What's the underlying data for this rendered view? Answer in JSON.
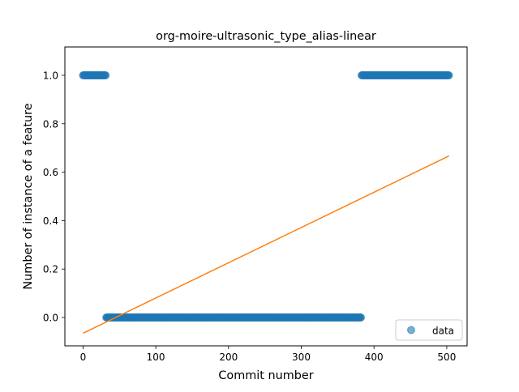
{
  "chart_data": {
    "type": "scatter",
    "title": "org-moire-ultrasonic_type_alias-linear",
    "xlabel": "Commit number",
    "ylabel": "Number of instance of a feature",
    "xlim": [
      -25,
      528
    ],
    "ylim": [
      -0.117,
      1.117
    ],
    "xticks": [
      0,
      100,
      200,
      300,
      400,
      500
    ],
    "yticks": [
      0.0,
      0.2,
      0.4,
      0.6,
      0.8,
      1.0
    ],
    "xtick_labels": [
      "0",
      "100",
      "200",
      "300",
      "400",
      "500"
    ],
    "ytick_labels": [
      "0.0",
      "0.2",
      "0.4",
      "0.6",
      "0.8",
      "1.0"
    ],
    "grid": false,
    "legend_position": "lower-right",
    "series": [
      {
        "name": "data",
        "kind": "scatter",
        "color": "#1f77b4",
        "segments": [
          {
            "x_start": 0,
            "x_end": 31,
            "y": 1.0
          },
          {
            "x_start": 32,
            "x_end": 382,
            "y": 0.0
          },
          {
            "x_start": 383,
            "x_end": 503,
            "y": 1.0
          }
        ]
      },
      {
        "kind": "line",
        "color": "#ff7f0e",
        "x": [
          0,
          503
        ],
        "y": [
          -0.065,
          0.667
        ]
      }
    ]
  }
}
